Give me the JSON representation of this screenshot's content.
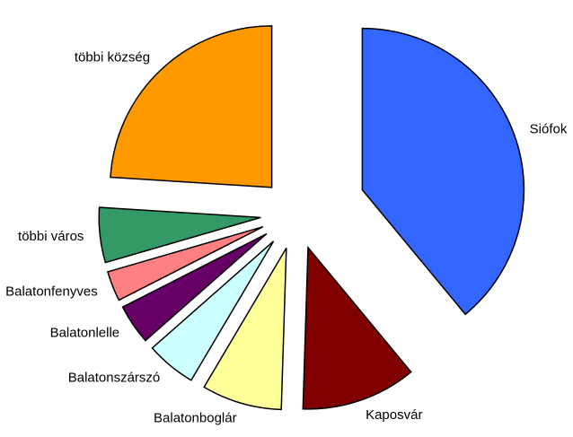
{
  "chart_data": {
    "type": "pie",
    "categories": [
      "Siófok",
      "Kaposvár",
      "Balatonboglár",
      "Balatonszárszó",
      "Balatonlelle",
      "Balatonfenyves",
      "többi város",
      "többi község"
    ],
    "values": [
      39,
      11.5,
      8,
      5,
      4,
      3,
      5.5,
      24
    ],
    "colors": [
      "#3366ff",
      "#800000",
      "#ffff99",
      "#ccffff",
      "#660066",
      "#ff8080",
      "#339966",
      "#ff9900"
    ]
  }
}
